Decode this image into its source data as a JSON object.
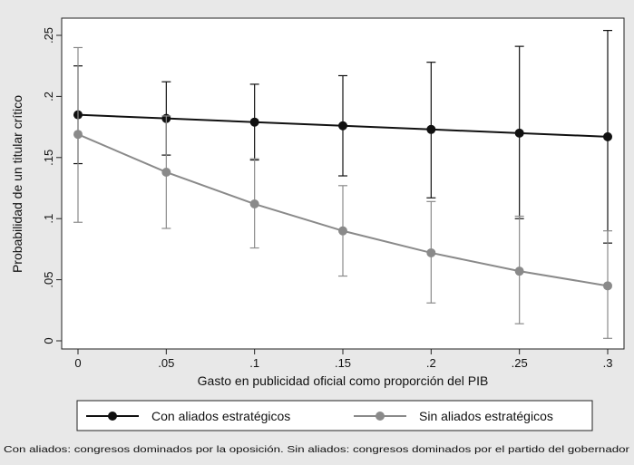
{
  "chart_data": {
    "type": "line",
    "xlabel": "Gasto en publicidad oficial como proporción del PIB",
    "ylabel": "Probabilidad de un titular crítico",
    "x_ticks": [
      "0",
      ".05",
      ".1",
      ".15",
      ".2",
      ".25",
      ".3"
    ],
    "y_ticks": [
      "0",
      ".05",
      ".1",
      ".15",
      ".2",
      ".25"
    ],
    "xlim": [
      0,
      0.3
    ],
    "ylim": [
      0,
      0.25
    ],
    "grid": false,
    "legend_position": "bottom",
    "x": [
      0,
      0.05,
      0.1,
      0.15,
      0.2,
      0.25,
      0.3
    ],
    "series": [
      {
        "name": "Con aliados estratégicos",
        "color": "#111111",
        "values": [
          0.185,
          0.182,
          0.179,
          0.176,
          0.173,
          0.17,
          0.167
        ],
        "ci_lower": [
          0.145,
          0.152,
          0.148,
          0.135,
          0.117,
          0.1,
          0.08
        ],
        "ci_upper": [
          0.225,
          0.212,
          0.21,
          0.217,
          0.228,
          0.241,
          0.254
        ]
      },
      {
        "name": "Sin aliados estratégicos",
        "color": "#8a8a8a",
        "values": [
          0.169,
          0.138,
          0.112,
          0.09,
          0.072,
          0.057,
          0.045
        ],
        "ci_lower": [
          0.097,
          0.092,
          0.076,
          0.053,
          0.031,
          0.014,
          0.002
        ],
        "ci_upper": [
          0.24,
          0.184,
          0.149,
          0.127,
          0.114,
          0.102,
          0.09
        ]
      }
    ]
  },
  "note": "Con aliados: congresos dominados por la oposición. Sin aliados: congresos dominados por el partido del gobernador"
}
